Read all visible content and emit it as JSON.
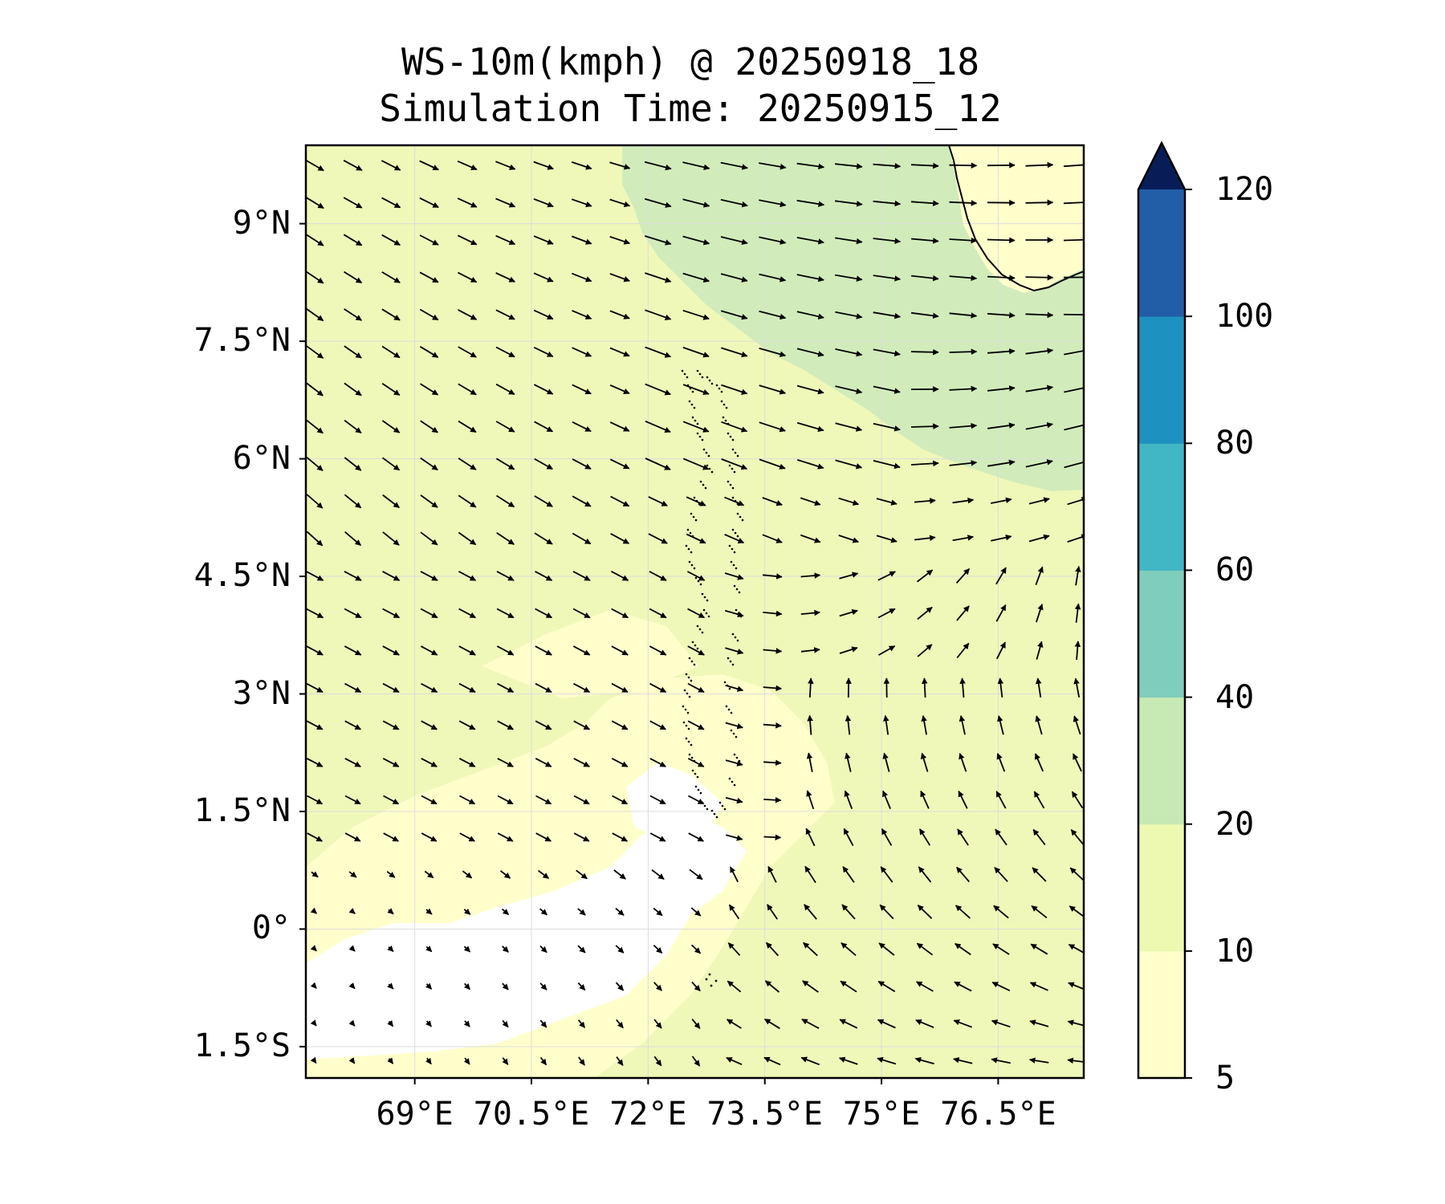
{
  "title_line1": "WS-10m(kmph) @ 20250918_18",
  "title_line2": "Simulation Time: 20250915_12",
  "map": {
    "lon_range": [
      67.6,
      77.6
    ],
    "lat_range": [
      -1.9,
      10.0
    ],
    "lat_ticks": [
      {
        "value": 9,
        "label": "9°N"
      },
      {
        "value": 7.5,
        "label": "7.5°N"
      },
      {
        "value": 6,
        "label": "6°N"
      },
      {
        "value": 4.5,
        "label": "4.5°N"
      },
      {
        "value": 3,
        "label": "3°N"
      },
      {
        "value": 1.5,
        "label": "1.5°N"
      },
      {
        "value": 0,
        "label": "0°"
      },
      {
        "value": -1.5,
        "label": "1.5°S"
      }
    ],
    "lon_ticks": [
      {
        "value": 69,
        "label": "69°E"
      },
      {
        "value": 70.5,
        "label": "70.5°E"
      },
      {
        "value": 72,
        "label": "72°E"
      },
      {
        "value": 73.5,
        "label": "73.5°E"
      },
      {
        "value": 75,
        "label": "75°E"
      },
      {
        "value": 76.5,
        "label": "76.5°E"
      }
    ],
    "gridlines": true,
    "coastline_region": "southern India (top-right corner)",
    "islands": "Maldives atolls (dotted, near 73°E)"
  },
  "colorbar": {
    "levels": [
      5,
      10,
      20,
      40,
      60,
      80,
      100,
      120
    ],
    "labels": [
      "5",
      "10",
      "20",
      "40",
      "60",
      "80",
      "100",
      "120"
    ],
    "colors": [
      "#ffffcc",
      "#edf8b1",
      "#c7e9b4",
      "#7fcdbb",
      "#41b6c4",
      "#1d91c0",
      "#225ea8",
      "#253494"
    ],
    "extend_color": "#081d58",
    "extend": "max"
  },
  "field_colors": {
    "below_5": "#ffffff",
    "5_10": "#ffffcc",
    "10_20": "#eff8b8",
    "20_40": "#d1ecba"
  }
}
